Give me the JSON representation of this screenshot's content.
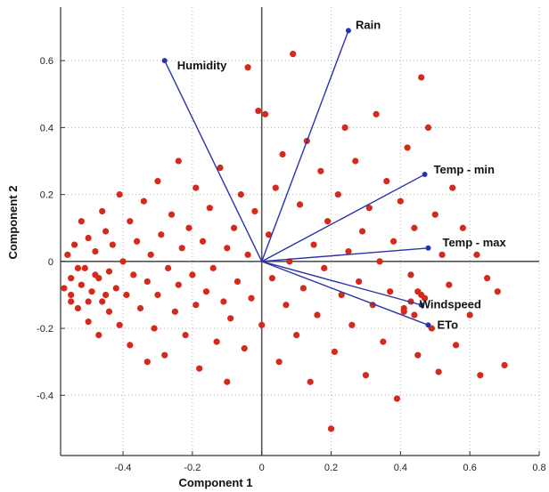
{
  "chart_data": {
    "type": "scatter",
    "title": "",
    "xlabel": "Component 1",
    "ylabel": "Component 2",
    "xlim": [
      -0.58,
      0.8
    ],
    "ylim": [
      -0.58,
      0.76
    ],
    "xticks": [
      -0.4,
      -0.2,
      0,
      0.2,
      0.4,
      0.6,
      0.8
    ],
    "xtick_labels": [
      "-0.4",
      "-0.2",
      "0",
      "0.2",
      "0.4",
      "0.6",
      "0.8"
    ],
    "yticks": [
      -0.4,
      -0.2,
      0,
      0.2,
      0.4,
      0.6
    ],
    "ytick_labels": [
      "-0.4",
      "-0.2",
      "0",
      "0.2",
      "0.4",
      "0.6"
    ],
    "grid": "dotted",
    "colors": {
      "points": "#d42a1c",
      "vectors": "#2a33a8",
      "axes": "#333333"
    },
    "vectors": [
      {
        "name": "Rain",
        "x": 0.25,
        "y": 0.69
      },
      {
        "name": "Humidity",
        "x": -0.28,
        "y": 0.6
      },
      {
        "name": "Temp - min",
        "x": 0.47,
        "y": 0.26
      },
      {
        "name": "Temp - max",
        "x": 0.48,
        "y": 0.04
      },
      {
        "name": "Windspeed",
        "x": 0.46,
        "y": -0.13
      },
      {
        "name": "ETo",
        "x": 0.48,
        "y": -0.19
      }
    ],
    "points": [
      [
        -0.57,
        -0.08
      ],
      [
        -0.56,
        0.02
      ],
      [
        -0.55,
        -0.05
      ],
      [
        -0.55,
        -0.12
      ],
      [
        -0.54,
        0.05
      ],
      [
        -0.53,
        -0.02
      ],
      [
        -0.53,
        -0.14
      ],
      [
        -0.52,
        0.12
      ],
      [
        -0.52,
        -0.07
      ],
      [
        -0.51,
        -0.02
      ],
      [
        -0.5,
        0.07
      ],
      [
        -0.5,
        -0.18
      ],
      [
        -0.49,
        -0.09
      ],
      [
        -0.48,
        0.03
      ],
      [
        -0.47,
        -0.05
      ],
      [
        -0.47,
        -0.22
      ],
      [
        -0.46,
        0.15
      ],
      [
        -0.46,
        -0.12
      ],
      [
        -0.45,
        0.09
      ],
      [
        -0.44,
        -0.03
      ],
      [
        -0.44,
        -0.15
      ],
      [
        -0.43,
        0.05
      ],
      [
        -0.42,
        -0.08
      ],
      [
        -0.41,
        0.2
      ],
      [
        -0.41,
        -0.19
      ],
      [
        -0.4,
        0.0
      ],
      [
        -0.39,
        -0.1
      ],
      [
        -0.38,
        0.12
      ],
      [
        -0.38,
        -0.25
      ],
      [
        -0.37,
        -0.04
      ],
      [
        -0.36,
        0.06
      ],
      [
        -0.35,
        -0.14
      ],
      [
        -0.34,
        0.18
      ],
      [
        -0.33,
        -0.06
      ],
      [
        -0.33,
        -0.3
      ],
      [
        -0.32,
        0.02
      ],
      [
        -0.31,
        -0.2
      ],
      [
        -0.3,
        0.24
      ],
      [
        -0.3,
        -0.1
      ],
      [
        -0.29,
        0.08
      ],
      [
        -0.28,
        -0.28
      ],
      [
        -0.27,
        -0.02
      ],
      [
        -0.26,
        0.14
      ],
      [
        -0.25,
        -0.15
      ],
      [
        -0.24,
        0.3
      ],
      [
        -0.24,
        -0.07
      ],
      [
        -0.23,
        0.04
      ],
      [
        -0.22,
        -0.22
      ],
      [
        -0.21,
        0.1
      ],
      [
        -0.2,
        -0.04
      ],
      [
        -0.19,
        0.22
      ],
      [
        -0.19,
        -0.13
      ],
      [
        -0.18,
        -0.32
      ],
      [
        -0.17,
        0.06
      ],
      [
        -0.16,
        -0.09
      ],
      [
        -0.15,
        0.16
      ],
      [
        -0.14,
        -0.02
      ],
      [
        -0.13,
        -0.24
      ],
      [
        -0.12,
        0.28
      ],
      [
        -0.11,
        -0.12
      ],
      [
        -0.1,
        0.04
      ],
      [
        -0.1,
        -0.36
      ],
      [
        -0.09,
        -0.17
      ],
      [
        -0.08,
        0.1
      ],
      [
        -0.07,
        -0.06
      ],
      [
        -0.06,
        0.2
      ],
      [
        -0.05,
        -0.26
      ],
      [
        -0.04,
        0.58
      ],
      [
        -0.04,
        0.02
      ],
      [
        -0.03,
        -0.11
      ],
      [
        -0.02,
        0.15
      ],
      [
        -0.01,
        0.45
      ],
      [
        0.0,
        -0.19
      ],
      [
        0.01,
        0.44
      ],
      [
        0.02,
        0.08
      ],
      [
        0.03,
        -0.05
      ],
      [
        0.04,
        0.22
      ],
      [
        0.05,
        -0.3
      ],
      [
        0.06,
        0.32
      ],
      [
        0.07,
        -0.13
      ],
      [
        0.08,
        0.0
      ],
      [
        0.09,
        0.62
      ],
      [
        0.1,
        -0.22
      ],
      [
        0.11,
        0.17
      ],
      [
        0.12,
        -0.08
      ],
      [
        0.13,
        0.36
      ],
      [
        0.14,
        -0.36
      ],
      [
        0.15,
        0.05
      ],
      [
        0.16,
        -0.16
      ],
      [
        0.17,
        0.27
      ],
      [
        0.18,
        -0.02
      ],
      [
        0.19,
        0.12
      ],
      [
        0.2,
        -0.5
      ],
      [
        0.21,
        -0.27
      ],
      [
        0.22,
        0.2
      ],
      [
        0.23,
        -0.1
      ],
      [
        0.24,
        0.4
      ],
      [
        0.25,
        0.03
      ],
      [
        0.26,
        -0.19
      ],
      [
        0.27,
        0.3
      ],
      [
        0.28,
        -0.06
      ],
      [
        0.29,
        0.09
      ],
      [
        0.3,
        -0.34
      ],
      [
        0.31,
        0.16
      ],
      [
        0.32,
        -0.13
      ],
      [
        0.33,
        0.44
      ],
      [
        0.34,
        0.0
      ],
      [
        0.35,
        -0.24
      ],
      [
        0.36,
        0.24
      ],
      [
        0.37,
        -0.09
      ],
      [
        0.38,
        0.06
      ],
      [
        0.39,
        -0.41
      ],
      [
        0.4,
        0.18
      ],
      [
        0.41,
        -0.15
      ],
      [
        0.42,
        0.34
      ],
      [
        0.43,
        -0.04
      ],
      [
        0.44,
        0.1
      ],
      [
        0.45,
        -0.28
      ],
      [
        0.46,
        0.55
      ],
      [
        0.47,
        -0.11
      ],
      [
        0.48,
        0.4
      ],
      [
        0.49,
        -0.2
      ],
      [
        0.5,
        0.14
      ],
      [
        0.51,
        -0.33
      ],
      [
        0.52,
        0.02
      ],
      [
        0.54,
        -0.07
      ],
      [
        0.55,
        0.22
      ],
      [
        0.56,
        -0.25
      ],
      [
        0.58,
        0.1
      ],
      [
        0.6,
        -0.16
      ],
      [
        0.62,
        0.02
      ],
      [
        0.63,
        -0.34
      ],
      [
        0.65,
        -0.05
      ],
      [
        0.68,
        -0.09
      ],
      [
        0.7,
        -0.31
      ],
      [
        0.45,
        -0.09
      ],
      [
        0.43,
        -0.12
      ],
      [
        0.41,
        -0.14
      ],
      [
        0.44,
        -0.16
      ],
      [
        0.46,
        -0.1
      ],
      [
        -0.55,
        -0.1
      ],
      [
        -0.5,
        -0.12
      ],
      [
        -0.48,
        -0.04
      ],
      [
        -0.45,
        -0.1
      ]
    ]
  }
}
